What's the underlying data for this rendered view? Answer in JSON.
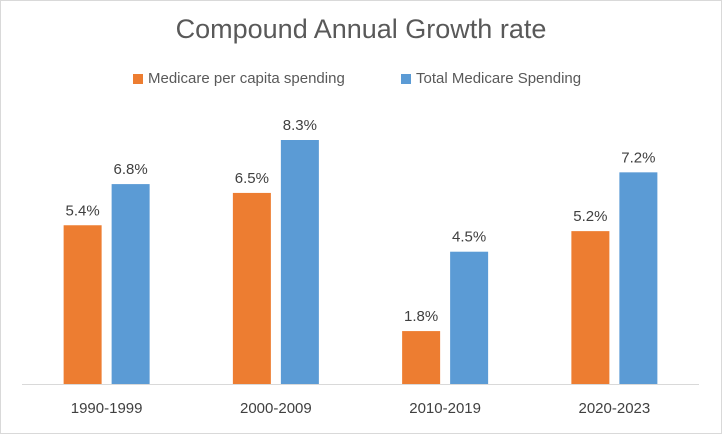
{
  "chart_data": {
    "type": "bar",
    "title": "Compound Annual Growth rate",
    "categories": [
      "1990-1999",
      "2000-2009",
      "2010-2019",
      "2020-2023"
    ],
    "series": [
      {
        "name": "Medicare per capita spending",
        "color": "#ED7D31",
        "values": [
          5.4,
          6.5,
          1.8,
          5.2
        ],
        "labels": [
          "5.4%",
          "6.5%",
          "1.8%",
          "5.2%"
        ]
      },
      {
        "name": "Total Medicare Spending",
        "color": "#5B9BD5",
        "values": [
          6.8,
          8.3,
          4.5,
          7.2
        ],
        "labels": [
          "6.8%",
          "8.3%",
          "4.5%",
          "7.2%"
        ]
      }
    ],
    "xlabel": "",
    "ylabel": "",
    "ylim": [
      0,
      8.3
    ],
    "grid": false,
    "legend_position": "top"
  }
}
